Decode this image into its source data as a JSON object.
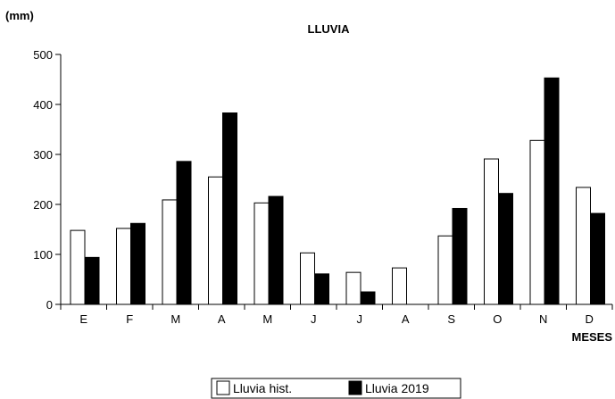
{
  "chart_data": {
    "type": "bar",
    "title": "LLUVIA",
    "ylabel": "(mm)",
    "xlabel": "MESES",
    "categories": [
      "E",
      "F",
      "M",
      "A",
      "M",
      "J",
      "J",
      "A",
      "S",
      "O",
      "N",
      "D"
    ],
    "series": [
      {
        "name": "Lluvia hist.",
        "color": "#ffffff",
        "values": [
          148,
          152,
          209,
          255,
          203,
          103,
          64,
          73,
          137,
          291,
          328,
          234
        ]
      },
      {
        "name": "Lluvia 2019",
        "color": "#000000",
        "values": [
          94,
          162,
          286,
          383,
          216,
          61,
          25,
          0,
          192,
          222,
          453,
          182
        ]
      }
    ],
    "ylim": [
      0,
      500
    ],
    "yticks": [
      0,
      100,
      200,
      300,
      400,
      500
    ],
    "grid": false,
    "legend_position": "bottom-center"
  }
}
